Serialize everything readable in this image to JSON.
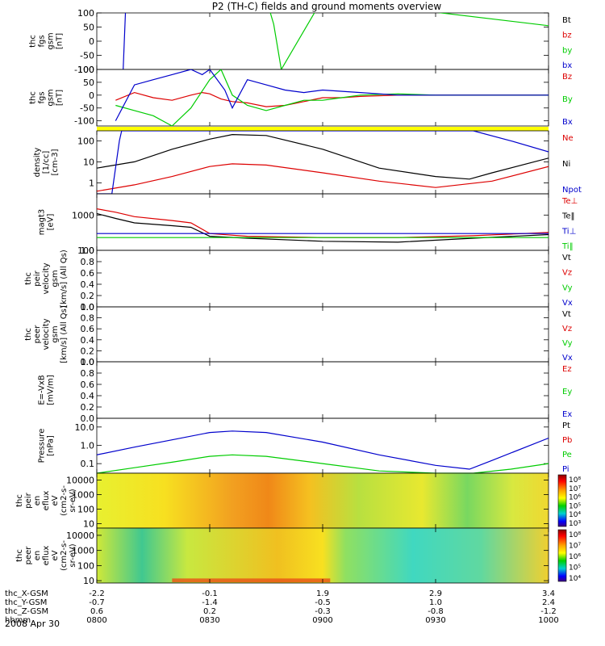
{
  "title": "P2 (TH-C) fields and ground moments overview",
  "chart_data": {
    "type": "line",
    "title": "P2 (TH-C) fields and ground moments overview",
    "x_ticks": [
      "0800",
      "0830",
      "0900",
      "0930",
      "1000"
    ],
    "x_range_minutes": [
      0,
      120
    ],
    "panels": [
      {
        "id": "fgs",
        "ylabel": [
          "thc",
          "fgs",
          "gsm",
          "[nT]"
        ],
        "scale": "linear",
        "ylim": [
          -100,
          100
        ],
        "yticks": [
          "100",
          "50",
          "0",
          "-50",
          "-100"
        ],
        "legend": [
          {
            "label": "Bt",
            "color": "#000000"
          },
          {
            "label": "bz",
            "color": "#dd0000"
          },
          {
            "label": "by",
            "color": "#00cc00"
          },
          {
            "label": "bx",
            "color": "#0000cc"
          }
        ],
        "series": [
          {
            "label": "by",
            "color": "#00cc00",
            "x": [
              45,
              47,
              49,
              60,
              120
            ],
            "y": [
              150,
              60,
              -100,
              150,
              55
            ]
          },
          {
            "label": "bx",
            "color": "#0000cc",
            "x": [
              7,
              7.6,
              8
            ],
            "y": [
              -100,
              100,
              150
            ]
          }
        ]
      },
      {
        "id": "fgs-b",
        "ylabel": [
          "thc",
          "fgs",
          "gsm",
          "[nT]"
        ],
        "scale": "linear",
        "ylim": [
          -120,
          100
        ],
        "yticks": [
          "-100",
          "-50",
          "0",
          "50",
          "100"
        ],
        "legend": [
          {
            "label": "Bz",
            "color": "#dd0000"
          },
          {
            "label": "By",
            "color": "#00cc00"
          },
          {
            "label": "Bx",
            "color": "#0000cc"
          }
        ],
        "series": [
          {
            "label": "Bz",
            "color": "#dd0000",
            "x": [
              5,
              10,
              15,
              20,
              25,
              28,
              30,
              33,
              36,
              40,
              45,
              50,
              55,
              60,
              65,
              70,
              80,
              90,
              100,
              110,
              120
            ],
            "y": [
              -20,
              10,
              -10,
              -20,
              0,
              10,
              5,
              -15,
              -25,
              -30,
              -45,
              -40,
              -25,
              -10,
              -10,
              -5,
              0,
              0,
              0,
              0,
              0
            ]
          },
          {
            "label": "By",
            "color": "#00cc00",
            "x": [
              5,
              10,
              15,
              20,
              25,
              30,
              33,
              36,
              40,
              45,
              50,
              55,
              60,
              65,
              70,
              80,
              90,
              100,
              110,
              120
            ],
            "y": [
              -40,
              -60,
              -80,
              -120,
              -50,
              60,
              100,
              0,
              -40,
              -60,
              -40,
              -20,
              -20,
              -10,
              0,
              5,
              0,
              0,
              0,
              0
            ]
          },
          {
            "label": "Bx",
            "color": "#0000cc",
            "x": [
              5,
              10,
              15,
              20,
              25,
              28,
              30,
              34,
              36,
              40,
              45,
              50,
              55,
              60,
              70,
              80,
              90,
              100,
              110,
              120
            ],
            "y": [
              -100,
              40,
              60,
              80,
              100,
              80,
              100,
              20,
              -50,
              60,
              40,
              20,
              10,
              20,
              10,
              0,
              0,
              0,
              0,
              0
            ]
          }
        ]
      },
      {
        "id": "density",
        "ylabel": [
          "density",
          "[1/cc]",
          "[cm-3]"
        ],
        "scale": "log",
        "ylim": [
          0.3,
          300
        ],
        "yticks": [
          "100",
          "10",
          "1"
        ],
        "legend": [
          {
            "label": "Ne",
            "color": "#dd0000"
          },
          {
            "label": "Ni",
            "color": "#000000"
          },
          {
            "label": "Npot",
            "color": "#0000cc"
          }
        ],
        "series": [
          {
            "label": "Ni",
            "color": "#000000",
            "x": [
              0,
              10,
              20,
              30,
              36,
              45,
              60,
              75,
              90,
              99,
              105,
              120
            ],
            "y": [
              5,
              10,
              40,
              120,
              200,
              180,
              40,
              5,
              2,
              1.5,
              3,
              15
            ]
          },
          {
            "label": "Ne",
            "color": "#dd0000",
            "x": [
              0,
              10,
              20,
              30,
              36,
              45,
              60,
              75,
              90,
              105,
              120
            ],
            "y": [
              0.4,
              0.8,
              2,
              6,
              8,
              7,
              3,
              1.2,
              0.6,
              1.2,
              6
            ]
          },
          {
            "label": "Npot",
            "color": "#0000cc",
            "x": [
              0,
              4,
              6,
              6.6,
              100,
              110,
              120
            ],
            "y": [
              0.3,
              0.3,
              100,
              300,
              300,
              100,
              30
            ]
          }
        ]
      },
      {
        "id": "temp",
        "ylabel": [
          "magt3",
          "[eV]"
        ],
        "scale": "log",
        "ylim": [
          100,
          4000
        ],
        "yticks": [
          "1000",
          "100"
        ],
        "legend": [
          {
            "label": "Te⊥",
            "color": "#dd0000"
          },
          {
            "label": "Te‖",
            "color": "#000000"
          },
          {
            "label": "Ti⊥",
            "color": "#0000cc"
          },
          {
            "label": "Ti‖",
            "color": "#00cc00"
          }
        ],
        "series": [
          {
            "label": "Te⊥",
            "color": "#dd0000",
            "x": [
              0,
              5,
              10,
              20,
              25,
              30,
              40,
              60,
              80,
              100,
              120
            ],
            "y": [
              1500,
              1200,
              900,
              700,
              600,
              300,
              250,
              230,
              230,
              260,
              320
            ]
          },
          {
            "label": "Te‖",
            "color": "#000000",
            "x": [
              0,
              5,
              10,
              20,
              25,
              30,
              40,
              60,
              80,
              100,
              120
            ],
            "y": [
              1100,
              800,
              600,
              500,
              450,
              250,
              220,
              180,
              170,
              220,
              280
            ]
          },
          {
            "label": "Ti⊥",
            "color": "#0000cc",
            "x": [
              0,
              20,
              40,
              60,
              80,
              100,
              120
            ],
            "y": [
              300,
              300,
              300,
              300,
              300,
              300,
              300
            ]
          },
          {
            "label": "Ti‖",
            "color": "#00cc00",
            "x": [
              0,
              20,
              40,
              60,
              80,
              100,
              120
            ],
            "y": [
              230,
              230,
              230,
              230,
              230,
              230,
              230
            ]
          }
        ]
      },
      {
        "id": "peir-vel",
        "ylabel": [
          "thc",
          "peir",
          "velocity",
          "gsm",
          "[km/s] (All Qs)"
        ],
        "scale": "linear",
        "ylim": [
          0,
          1
        ],
        "yticks": [
          "1.0",
          "0.8",
          "0.6",
          "0.4",
          "0.2",
          "0.0"
        ],
        "legend": [
          {
            "label": "Vt",
            "color": "#000000"
          },
          {
            "label": "Vz",
            "color": "#dd0000"
          },
          {
            "label": "Vy",
            "color": "#00cc00"
          },
          {
            "label": "Vx",
            "color": "#0000cc"
          }
        ],
        "series": []
      },
      {
        "id": "peer-vel",
        "ylabel": [
          "thc",
          "peer",
          "velocity",
          "gsm",
          "[km/s] (All Qs)"
        ],
        "scale": "linear",
        "ylim": [
          0,
          1
        ],
        "yticks": [
          "1.0",
          "0.8",
          "0.6",
          "0.4",
          "0.2",
          "0.0"
        ],
        "legend": [
          {
            "label": "Vt",
            "color": "#000000"
          },
          {
            "label": "Vz",
            "color": "#dd0000"
          },
          {
            "label": "Vy",
            "color": "#00cc00"
          },
          {
            "label": "Vx",
            "color": "#0000cc"
          }
        ],
        "series": []
      },
      {
        "id": "efield",
        "ylabel": [
          "E=-VxB",
          "[mV/m]"
        ],
        "scale": "linear",
        "ylim": [
          0,
          1
        ],
        "yticks": [
          "1.0",
          "0.8",
          "0.6",
          "0.4",
          "0.2",
          "0.0"
        ],
        "legend": [
          {
            "label": "Ez",
            "color": "#dd0000"
          },
          {
            "label": "Ey",
            "color": "#00cc00"
          },
          {
            "label": "Ex",
            "color": "#0000cc"
          }
        ],
        "series": []
      },
      {
        "id": "pressure",
        "ylabel": [
          "Pressure",
          "[nPa]"
        ],
        "scale": "log",
        "ylim": [
          0.03,
          30
        ],
        "yticks": [
          "10.0",
          "1.0",
          "0.1"
        ],
        "legend": [
          {
            "label": "Pt",
            "color": "#000000"
          },
          {
            "label": "Pb",
            "color": "#dd0000"
          },
          {
            "label": "Pe",
            "color": "#00cc00"
          },
          {
            "label": "Pi",
            "color": "#0000cc"
          }
        ],
        "series": [
          {
            "label": "Pi",
            "color": "#0000cc",
            "x": [
              0,
              10,
              20,
              30,
              36,
              45,
              60,
              75,
              90,
              99,
              105,
              120
            ],
            "y": [
              0.3,
              0.8,
              2,
              5,
              6,
              5,
              1.5,
              0.3,
              0.08,
              0.05,
              0.15,
              2.5
            ]
          },
          {
            "label": "Pe",
            "color": "#00cc00",
            "x": [
              0,
              10,
              20,
              30,
              36,
              45,
              60,
              75,
              90,
              100,
              110,
              120
            ],
            "y": [
              0.03,
              0.06,
              0.12,
              0.25,
              0.3,
              0.25,
              0.1,
              0.04,
              0.03,
              0.03,
              0.05,
              0.1
            ]
          }
        ]
      },
      {
        "id": "peir-spec",
        "type": "heatmap",
        "ylabel": [
          "thc",
          "peir",
          "en",
          "eflux",
          "eV",
          "(cm2-s-",
          "sr-eV)"
        ],
        "scale": "log",
        "ylim": [
          5,
          30000
        ],
        "yticks": [
          "10000",
          "1000",
          "100",
          "10"
        ],
        "colorbar": {
          "min_exp": 3,
          "max_exp": 8,
          "labels": [
            "10⁸",
            "10⁷",
            "10⁶",
            "10⁵",
            "10⁴",
            "10³"
          ]
        }
      },
      {
        "id": "peer-spec",
        "type": "heatmap",
        "ylabel": [
          "thc",
          "peer",
          "en",
          "eflux",
          "eV",
          "(cm2-s-",
          "sr-eV)"
        ],
        "scale": "log",
        "ylim": [
          7,
          30000
        ],
        "yticks": [
          "10000",
          "1000",
          "100",
          "10"
        ],
        "colorbar": {
          "min_exp": 3.7,
          "max_exp": 8.3,
          "labels": [
            "10⁸",
            "10⁷",
            "10⁶",
            "10⁵",
            "10⁴"
          ]
        }
      }
    ],
    "ephemeris": [
      {
        "label": "thc_X-GSM",
        "values": [
          "-2.2",
          "-0.1",
          "1.9",
          "2.9",
          "3.4"
        ]
      },
      {
        "label": "thc_Y-GSM",
        "values": [
          "-0.7",
          "-1.4",
          "-0.5",
          "1.0",
          "2.4"
        ]
      },
      {
        "label": "thc_Z-GSM",
        "values": [
          "0.6",
          "0.2",
          "-0.3",
          "-0.8",
          "-1.2"
        ]
      },
      {
        "label": "hhmm",
        "values": [
          "0800",
          "0830",
          "0900",
          "0930",
          "1000"
        ]
      }
    ],
    "date": "2008 Apr 30"
  }
}
